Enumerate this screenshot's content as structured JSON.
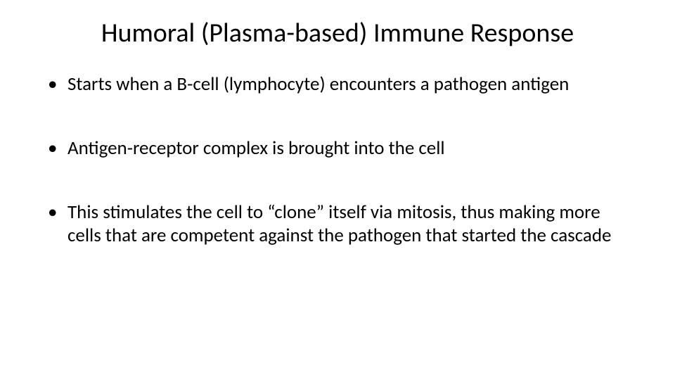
{
  "slide": {
    "title": "Humoral (Plasma-based) Immune Response",
    "title_fontsize": 38,
    "title_color": "#000000",
    "background_color": "#ffffff",
    "bullets": [
      "Starts when a B-cell (lymphocyte) encounters a pathogen antigen",
      "Antigen-receptor complex is brought into the cell",
      "This stimulates the cell to “clone” itself via mitosis, thus making more cells that are competent against the pathogen that started the cascade"
    ],
    "bullet_fontsize": 27,
    "bullet_color": "#000000",
    "bullet_marker": "•",
    "font_family": "Calibri"
  }
}
